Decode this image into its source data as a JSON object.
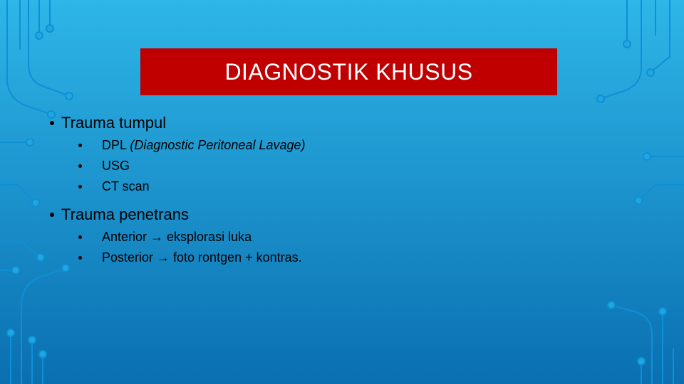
{
  "background": {
    "gradient_top": "#2eb6e8",
    "gradient_bottom": "#0a6fb0",
    "circuit_line_color": "#0f8fd6",
    "circuit_node_fill": "#1fa8df",
    "circuit_stroke_width": 2
  },
  "title_bar": {
    "background": "#c00000",
    "text": "DIAGNOSTIK KHUSUS",
    "text_color": "#ffffff",
    "font_size": 32
  },
  "body_text_color": "#000000",
  "sections": [
    {
      "label": "Trauma tumpul",
      "font_size": 22,
      "items": [
        {
          "prefix": "DPL ",
          "italic": "(Diagnostic Peritoneal Lavage)",
          "suffix": ""
        },
        {
          "prefix": "USG",
          "italic": "",
          "suffix": ""
        },
        {
          "prefix": "CT scan",
          "italic": "",
          "suffix": ""
        }
      ]
    },
    {
      "label": "Trauma penetrans",
      "font_size": 22,
      "items": [
        {
          "prefix": "Anterior  → eksplorasi luka",
          "italic": "",
          "suffix": ""
        },
        {
          "prefix": "Posterior → foto rontgen + kontras.",
          "italic": "",
          "suffix": ""
        }
      ]
    }
  ]
}
